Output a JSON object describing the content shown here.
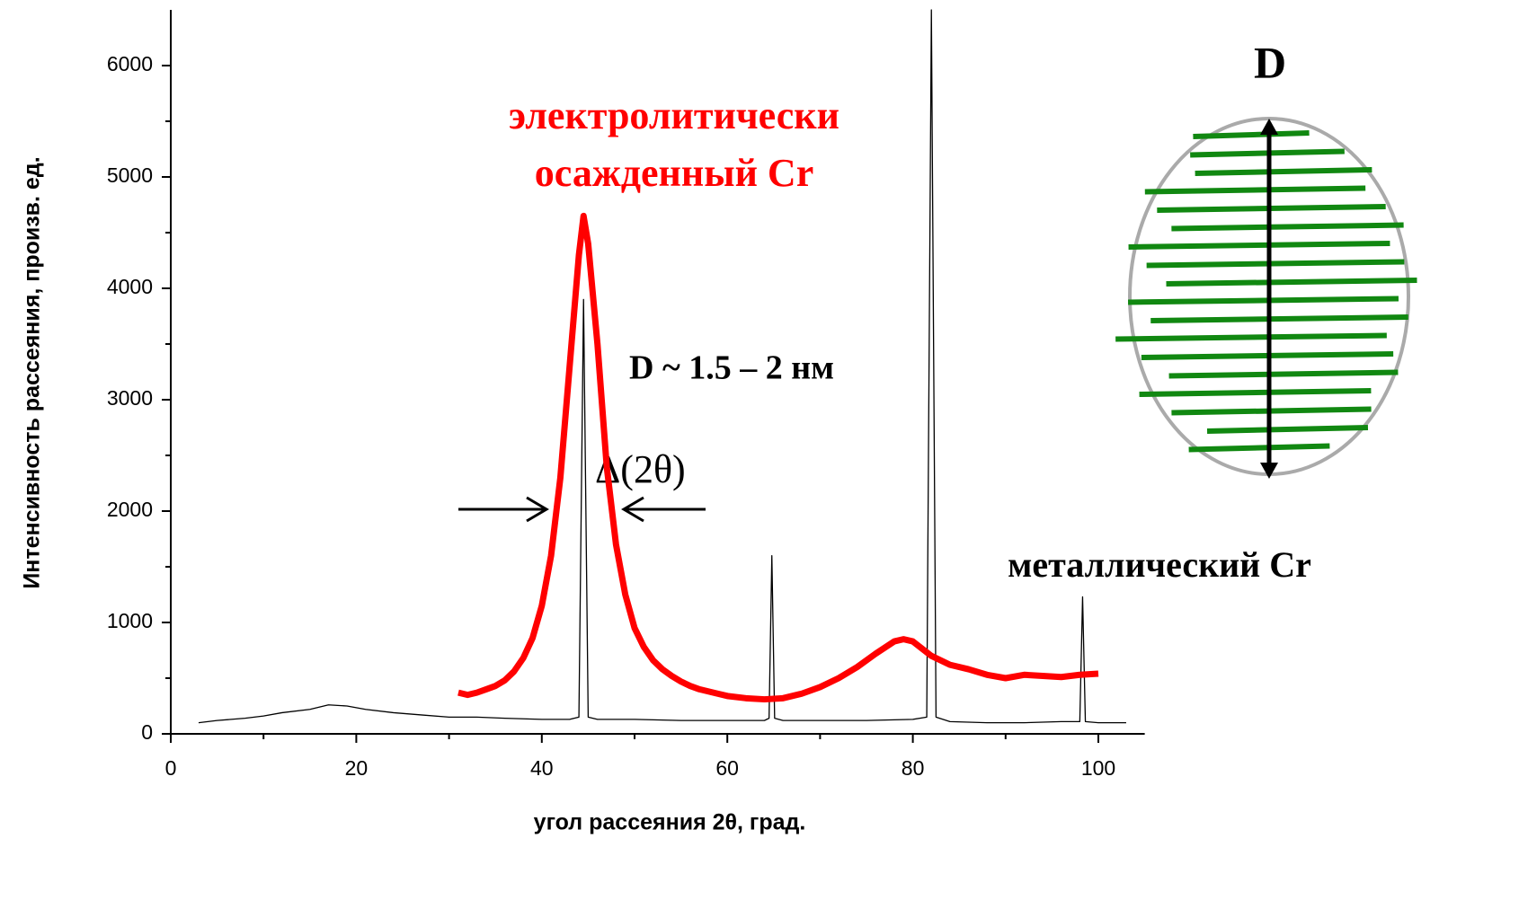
{
  "chart_data": {
    "type": "line",
    "xlabel": "угол рассеяния 2θ, град.",
    "ylabel": "Интенсивность рассеяния, произв. ед.",
    "xlim": [
      0,
      105
    ],
    "ylim": [
      0,
      6500
    ],
    "xticks": [
      0,
      20,
      40,
      60,
      80,
      100
    ],
    "xminor": [
      10,
      30,
      50,
      70,
      90
    ],
    "yticks": [
      0,
      1000,
      2000,
      3000,
      4000,
      5000,
      6000
    ],
    "yminor": [
      500,
      1500,
      2500,
      3500,
      4500,
      5500
    ],
    "series": [
      {
        "label": [
          "электролитически",
          "осажденный Cr"
        ],
        "color": "#ff0000",
        "x": [
          31,
          32,
          33,
          34,
          35,
          36,
          37,
          38,
          39,
          40,
          41,
          42,
          43,
          44,
          44.5,
          45,
          46,
          47,
          48,
          49,
          50,
          51,
          52,
          53,
          54,
          55,
          56,
          57,
          58,
          59,
          60,
          62,
          64,
          66,
          68,
          70,
          72,
          74,
          76,
          78,
          79,
          80,
          82,
          84,
          86,
          88,
          90,
          92,
          94,
          96,
          98,
          100
        ],
        "values": [
          370,
          350,
          370,
          400,
          430,
          480,
          560,
          680,
          860,
          1150,
          1600,
          2300,
          3300,
          4300,
          4650,
          4400,
          3500,
          2400,
          1700,
          1250,
          950,
          780,
          660,
          580,
          520,
          470,
          430,
          400,
          380,
          360,
          340,
          320,
          310,
          320,
          360,
          420,
          500,
          600,
          720,
          830,
          850,
          830,
          700,
          620,
          580,
          530,
          500,
          530,
          520,
          510,
          530,
          540
        ]
      },
      {
        "label": [
          "металлический Cr"
        ],
        "color": "#000000",
        "x": [
          3,
          5,
          8,
          10,
          12,
          15,
          17,
          19,
          21,
          24,
          27,
          30,
          33,
          36,
          40,
          43,
          44,
          44.5,
          45,
          46,
          50,
          55,
          60,
          64,
          64.5,
          64.8,
          65.1,
          66,
          70,
          75,
          80,
          81.5,
          82,
          82.5,
          84,
          88,
          92,
          96,
          98,
          98.3,
          98.6,
          100,
          103
        ],
        "values": [
          100,
          120,
          140,
          160,
          190,
          220,
          260,
          250,
          220,
          190,
          170,
          150,
          150,
          140,
          130,
          130,
          150,
          3900,
          150,
          130,
          130,
          120,
          120,
          120,
          140,
          1600,
          140,
          120,
          120,
          120,
          130,
          150,
          6500,
          150,
          110,
          100,
          100,
          110,
          110,
          1230,
          110,
          100,
          100
        ]
      }
    ],
    "annotations": [
      "D ~ 1.5 – 2 нм",
      "Δ(2θ)"
    ],
    "diagram_label": "D"
  }
}
